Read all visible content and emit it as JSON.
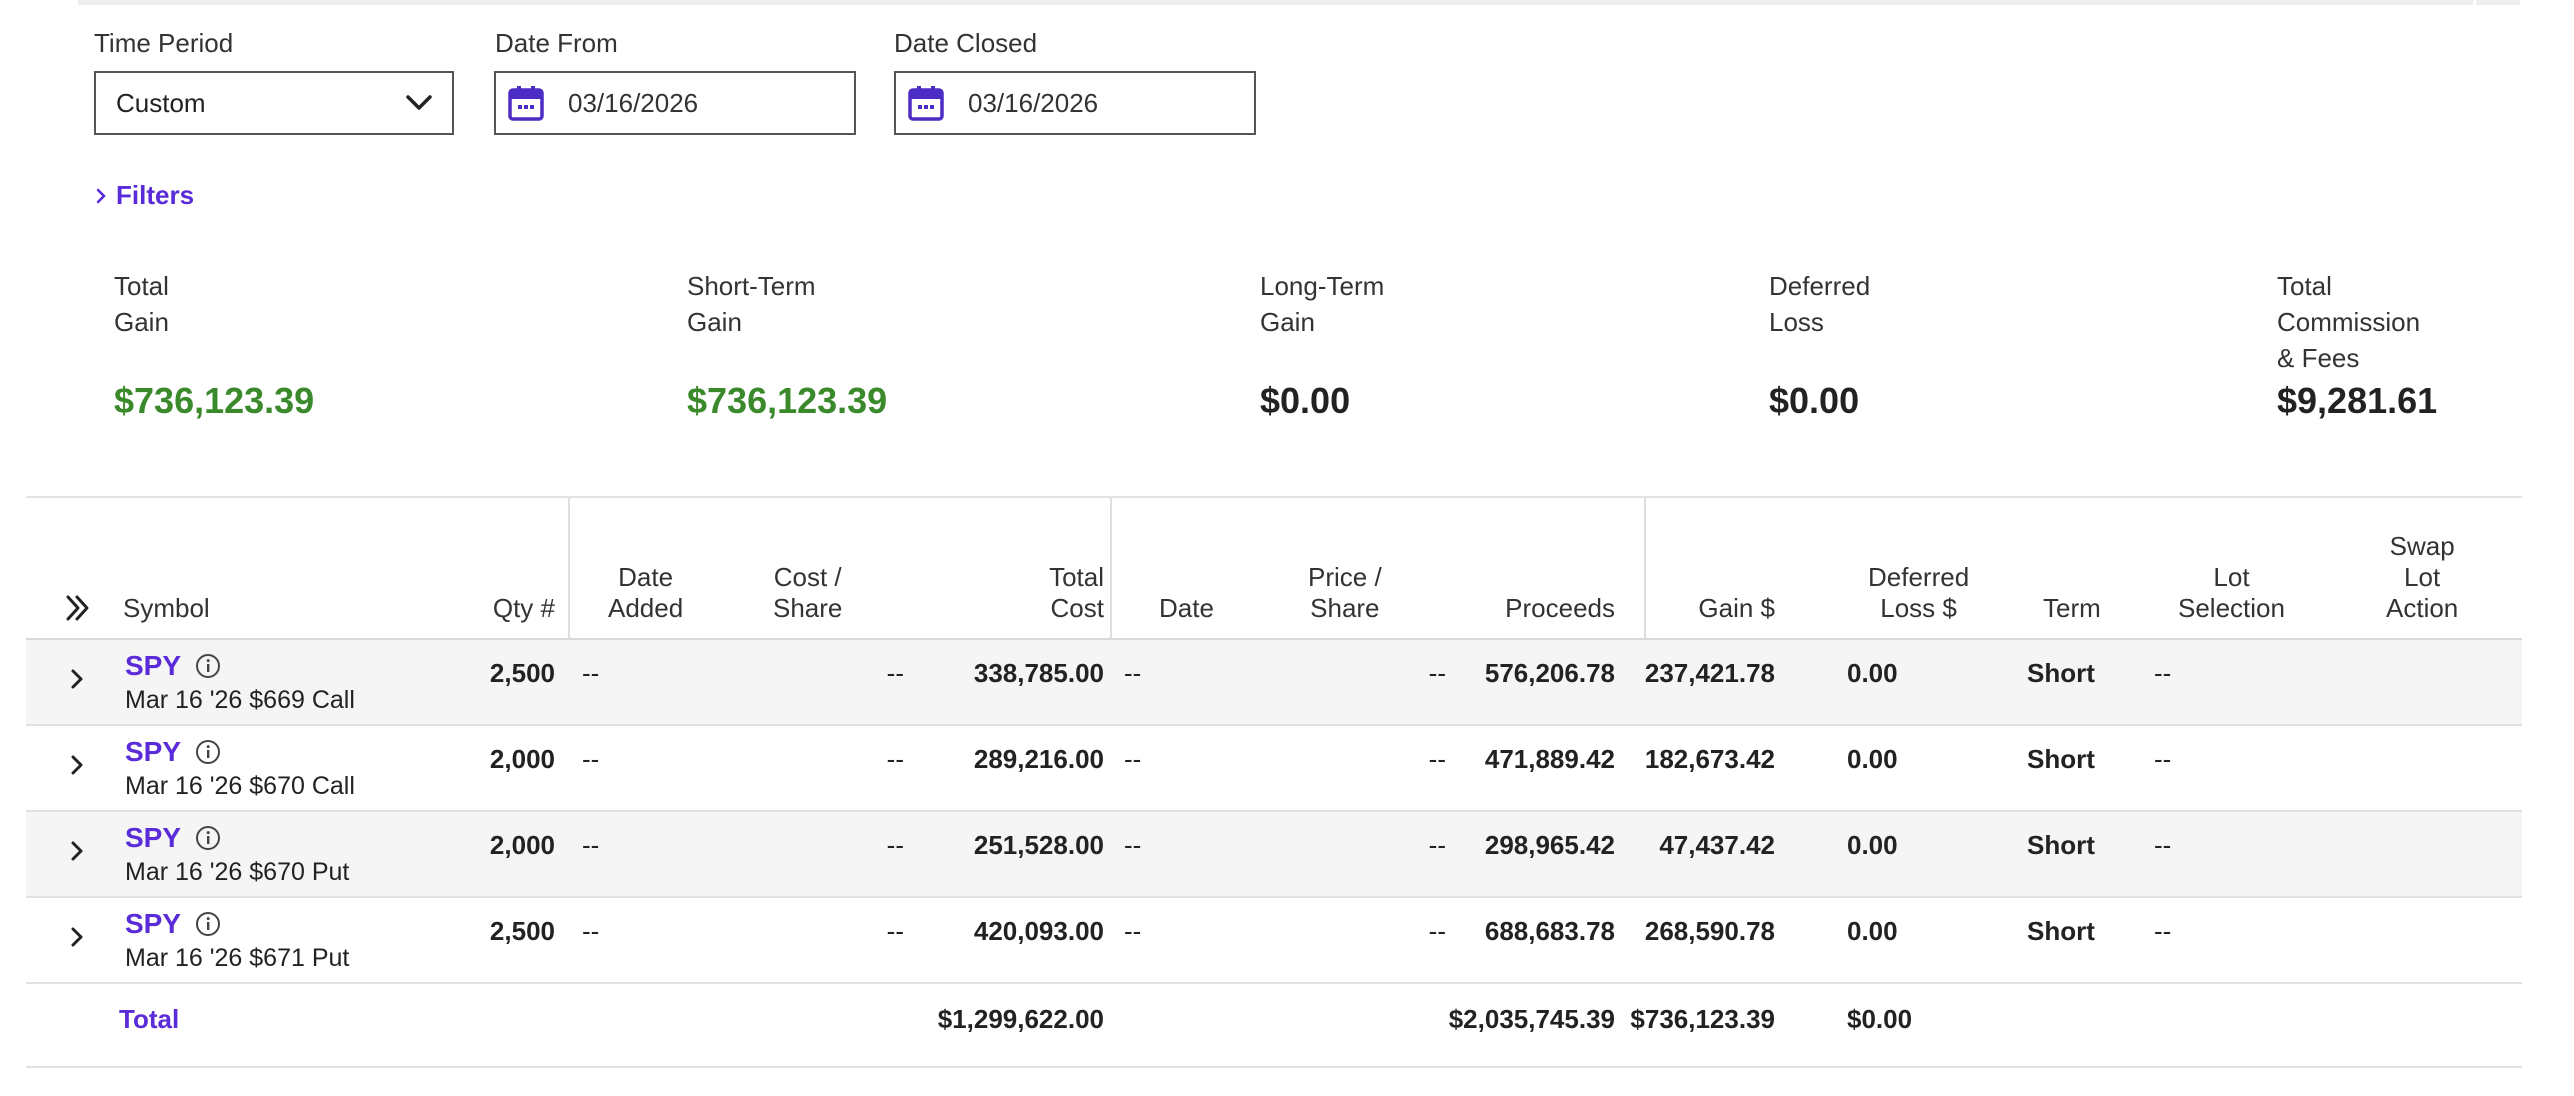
{
  "filters": {
    "time_period_label": "Time Period",
    "time_period_value": "Custom",
    "date_from_label": "Date From",
    "date_from_value": "03/16/2026",
    "date_closed_label": "Date Closed",
    "date_closed_value": "03/16/2026",
    "filters_link": "Filters"
  },
  "summary": [
    {
      "label": "Total\nGain",
      "value": "$736,123.39",
      "color": "#3a8a2c"
    },
    {
      "label": "Short-Term\nGain",
      "value": "$736,123.39",
      "color": "#3a8a2c"
    },
    {
      "label": "Long-Term\nGain",
      "value": "$0.00",
      "color": "#222222"
    },
    {
      "label": "Deferred\nLoss",
      "value": "$0.00",
      "color": "#222222"
    },
    {
      "label": "Total\nCommission\n& Fees",
      "value": "$9,281.61",
      "color": "#222222"
    }
  ],
  "table": {
    "headers": {
      "symbol": "Symbol",
      "qty": "Qty #",
      "date_added": "Date\nAdded",
      "cost_share": "Cost /\nShare",
      "total_cost": "Total\nCost",
      "date": "Date",
      "price_share": "Price /\nShare",
      "proceeds": "Proceeds",
      "gain": "Gain $",
      "deferred_loss": "Deferred\nLoss $",
      "term": "Term",
      "lot_selection": "Lot\nSelection",
      "swap_lot_action": "Swap\nLot\nAction"
    },
    "rows": [
      {
        "symbol": "SPY",
        "desc": "Mar 16 '26 $669 Call",
        "qty": "2,500",
        "date_added": "--",
        "cost_share": "--",
        "total_cost": "338,785.00",
        "date": "--",
        "price_share": "--",
        "proceeds": "576,206.78",
        "gain": "237,421.78",
        "deferred_loss": "0.00",
        "term": "Short",
        "lot_selection": "--"
      },
      {
        "symbol": "SPY",
        "desc": "Mar 16 '26 $670 Call",
        "qty": "2,000",
        "date_added": "--",
        "cost_share": "--",
        "total_cost": "289,216.00",
        "date": "--",
        "price_share": "--",
        "proceeds": "471,889.42",
        "gain": "182,673.42",
        "deferred_loss": "0.00",
        "term": "Short",
        "lot_selection": "--"
      },
      {
        "symbol": "SPY",
        "desc": "Mar 16 '26 $670 Put",
        "qty": "2,000",
        "date_added": "--",
        "cost_share": "--",
        "total_cost": "251,528.00",
        "date": "--",
        "price_share": "--",
        "proceeds": "298,965.42",
        "gain": "47,437.42",
        "deferred_loss": "0.00",
        "term": "Short",
        "lot_selection": "--"
      },
      {
        "symbol": "SPY",
        "desc": "Mar 16 '26 $671 Put",
        "qty": "2,500",
        "date_added": "--",
        "cost_share": "--",
        "total_cost": "420,093.00",
        "date": "--",
        "price_share": "--",
        "proceeds": "688,683.78",
        "gain": "268,590.78",
        "deferred_loss": "0.00",
        "term": "Short",
        "lot_selection": "--"
      }
    ],
    "total": {
      "label": "Total",
      "total_cost": "$1,299,622.00",
      "proceeds": "$2,035,745.39",
      "gain": "$736,123.39",
      "deferred_loss": "$0.00"
    }
  },
  "icons": {
    "calendar": "calendar-icon",
    "dropdown": "chevron-down-icon",
    "expand": "chevron-right-icon",
    "info": "info-icon",
    "expand_all": "double-chevron-right-icon"
  },
  "colors": {
    "accent": "#5a2bd8",
    "gain": "#3a8a2c"
  }
}
